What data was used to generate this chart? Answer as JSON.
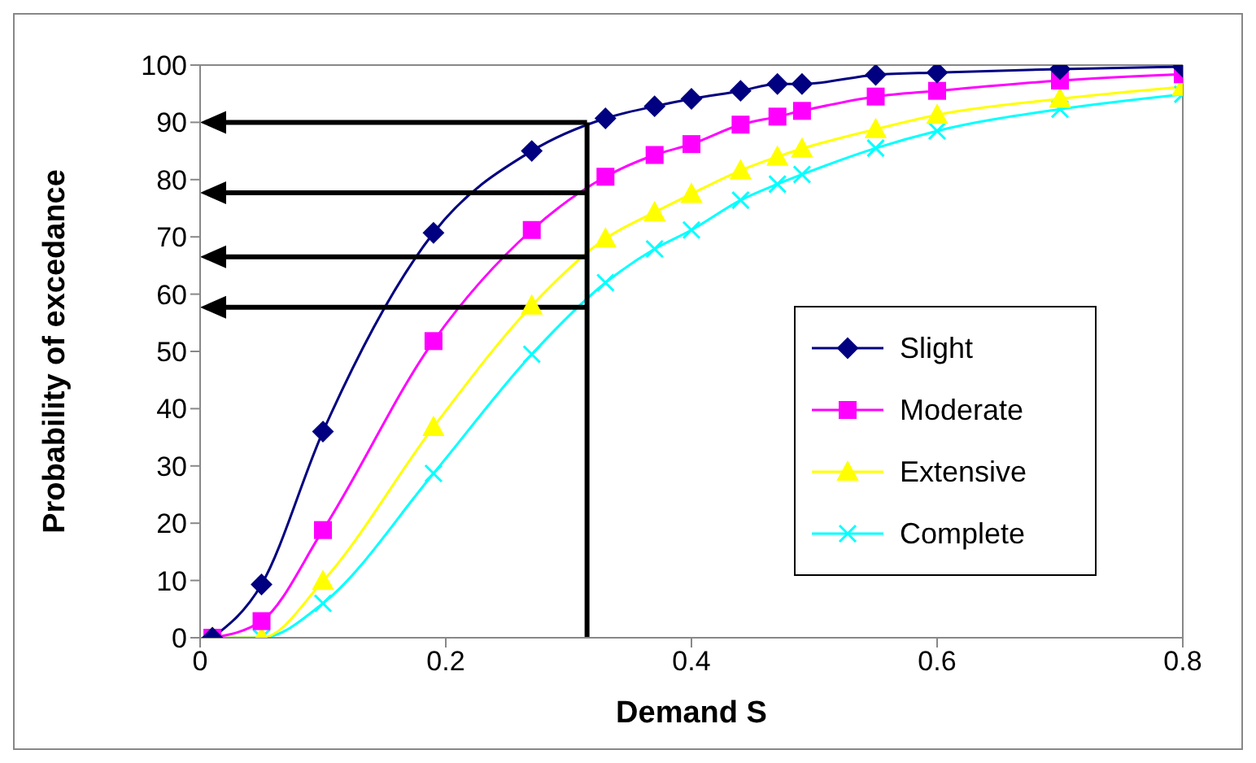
{
  "chart_data": {
    "type": "line",
    "xlabel": "Demand S",
    "ylabel": "Probability of excedance",
    "x": [
      0.01,
      0.05,
      0.1,
      0.19,
      0.27,
      0.33,
      0.37,
      0.4,
      0.44,
      0.47,
      0.49,
      0.55,
      0.6,
      0.7,
      0.8
    ],
    "series": [
      {
        "name": "Slight",
        "color": "#000080",
        "marker": "diamond",
        "values": [
          0,
          9.3,
          36,
          70.7,
          85,
          90.7,
          92.8,
          94.1,
          95.5,
          96.7,
          96.7,
          98.3,
          98.7,
          99.3,
          99.7
        ]
      },
      {
        "name": "Moderate",
        "color": "#ff00ff",
        "marker": "square",
        "values": [
          0,
          2.9,
          18.8,
          51.8,
          71.2,
          80.5,
          84.3,
          86.2,
          89.6,
          91,
          92,
          94.5,
          95.5,
          97.3,
          98.4
        ]
      },
      {
        "name": "Extensive",
        "color": "#ffff00",
        "marker": "triangle",
        "values": [
          0,
          0,
          9.9,
          36.8,
          58,
          69.7,
          74.3,
          77.5,
          81.6,
          84,
          85.4,
          88.8,
          91.3,
          94.1,
          96.2
        ]
      },
      {
        "name": "Complete",
        "color": "#00ffff",
        "marker": "cross",
        "values": [
          0,
          0,
          6,
          28.7,
          49.5,
          62,
          67.9,
          71.2,
          76.4,
          79.2,
          80.9,
          85.5,
          88.5,
          92.3,
          94.9
        ]
      }
    ],
    "xlim": [
      0,
      0.8
    ],
    "xticks": [
      0,
      0.2,
      0.4,
      0.6,
      0.8
    ],
    "ylim": [
      0,
      100
    ],
    "yticks": [
      0,
      10,
      20,
      30,
      40,
      50,
      60,
      70,
      80,
      90,
      100
    ],
    "ref_lines": [
      {
        "axis": "x",
        "value": 0.315,
        "color": "#000000"
      },
      {
        "axis": "y",
        "value": 90,
        "color": "#000000"
      },
      {
        "axis": "y",
        "value": 77.7,
        "color": "#000000"
      },
      {
        "axis": "y",
        "value": 66.5,
        "color": "#000000"
      },
      {
        "axis": "y",
        "value": 57.7,
        "color": "#000000"
      }
    ],
    "grid": false,
    "legend": "right",
    "line_style": "solid"
  }
}
